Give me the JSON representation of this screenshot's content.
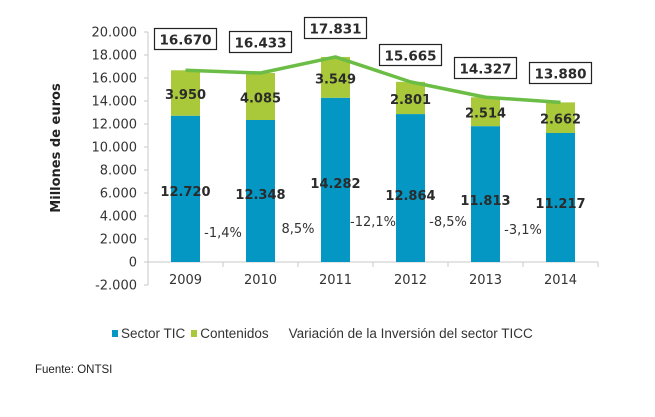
{
  "chart_data": {
    "type": "bar",
    "stacked": true,
    "title": "",
    "xlabel": "",
    "ylabel": "Millones de euros",
    "ylim": [
      -2000,
      20000
    ],
    "yticks": [
      -2000,
      0,
      2000,
      4000,
      6000,
      8000,
      10000,
      12000,
      14000,
      16000,
      18000,
      20000
    ],
    "ytick_labels": [
      "-2.000",
      "0",
      "2.000",
      "4.000",
      "6.000",
      "8.000",
      "10.000",
      "12.000",
      "14.000",
      "16.000",
      "18.000",
      "20.000"
    ],
    "categories": [
      "2009",
      "2010",
      "2011",
      "2012",
      "2013",
      "2014"
    ],
    "series": [
      {
        "name": "Sector TIC",
        "type": "bar",
        "color": "#0597c4",
        "values": [
          12720,
          12348,
          14282,
          12864,
          11813,
          11217
        ],
        "labels": [
          "12.720",
          "12.348",
          "14.282",
          "12.864",
          "11.813",
          "11.217"
        ]
      },
      {
        "name": "Contenidos",
        "type": "bar",
        "color": "#a9c93a",
        "values": [
          3950,
          4085,
          3549,
          2801,
          2514,
          2662
        ],
        "labels": [
          "3.950",
          "4.085",
          "3.549",
          "2.801",
          "2.514",
          "2.662"
        ]
      },
      {
        "name": "Variación de la Inversión del sector TICC",
        "type": "line",
        "color": "#6cbd45",
        "values": [
          16670,
          16433,
          17831,
          15665,
          14327,
          13880
        ],
        "labels": [
          "16.670",
          "16.433",
          "17.831",
          "15.665",
          "14.327",
          "13.880"
        ]
      }
    ],
    "variation_labels": [
      "-1,4%",
      "8,5%",
      "-12,1%",
      "-8,5%",
      "-3,1%"
    ],
    "grid": false,
    "legend_position": "bottom"
  },
  "legend": {
    "items": [
      {
        "label": "Sector TIC",
        "color": "#0597c4"
      },
      {
        "label": "Contenidos",
        "color": "#a9c93a"
      },
      {
        "label": "Variación de la Inversión del sector TICC",
        "color": null
      }
    ]
  },
  "source": "Fuente: ONTSI"
}
